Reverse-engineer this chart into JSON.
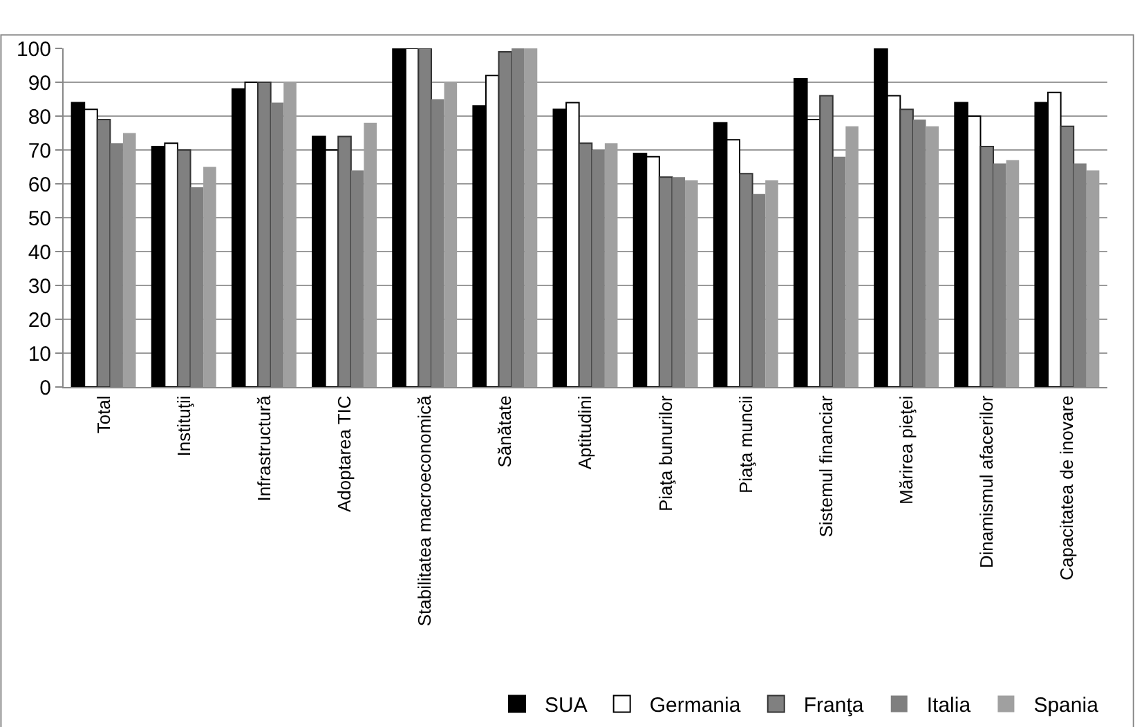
{
  "chart_data": {
    "type": "bar",
    "categories": [
      "Total",
      "Instituţii",
      "Infrastructură",
      "Adoptarea TIC",
      "Stabilitatea macroeconomică",
      "Sănătate",
      "Aptitudini",
      "Piaţa bunurilor",
      "Piaţa muncii",
      "Sistemul financiar",
      "Mărirea pieţei",
      "Dinamismul afacerilor",
      "Capacitatea de inovare"
    ],
    "series": [
      {
        "name": "SUA",
        "color": "#000000",
        "values": [
          84,
          71,
          88,
          74,
          100,
          83,
          82,
          69,
          78,
          91,
          100,
          84,
          84
        ]
      },
      {
        "name": "Germania",
        "color": "#ffffff",
        "values": [
          82,
          72,
          90,
          70,
          100,
          92,
          84,
          68,
          73,
          79,
          86,
          80,
          87
        ]
      },
      {
        "name": "Franţa",
        "color": "#808080",
        "values": [
          79,
          70,
          90,
          74,
          100,
          99,
          72,
          62,
          63,
          86,
          82,
          71,
          77
        ]
      },
      {
        "name": "Italia",
        "color": "#7f7f7f",
        "values": [
          72,
          59,
          84,
          64,
          85,
          100,
          70,
          62,
          57,
          68,
          79,
          66,
          66
        ]
      },
      {
        "name": "Spania",
        "color": "#a0a0a0",
        "values": [
          75,
          65,
          90,
          78,
          90,
          100,
          72,
          61,
          61,
          77,
          77,
          67,
          64
        ]
      }
    ],
    "ylim": [
      0,
      100
    ],
    "yticks": [
      0,
      10,
      20,
      30,
      40,
      50,
      60,
      70,
      80,
      90,
      100
    ],
    "grid": "y",
    "legend": "bottom right"
  }
}
